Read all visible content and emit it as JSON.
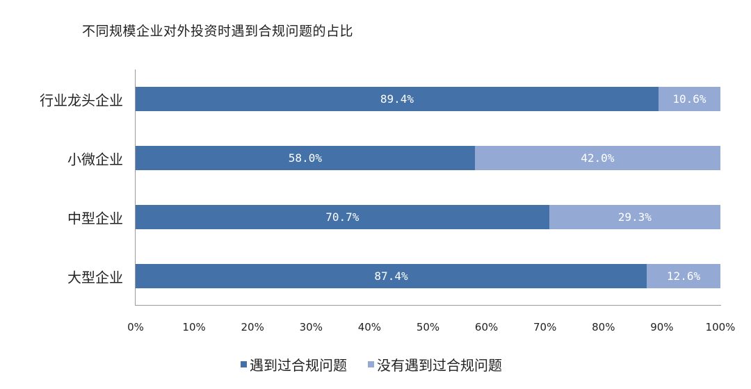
{
  "chart_data": {
    "type": "bar",
    "orientation": "horizontal",
    "stacked": true,
    "title": "不同规模企业对外投资时遇到合规问题的占比",
    "categories": [
      "行业龙头企业",
      "小微企业",
      "中型企业",
      "大型企业"
    ],
    "series": [
      {
        "name": "遇到过合规问题",
        "color": "#4472A8",
        "values": [
          89.4,
          58.0,
          70.7,
          87.4
        ],
        "labels": [
          "89.4%",
          "58.0%",
          "70.7%",
          "87.4%"
        ]
      },
      {
        "name": "没有遇到过合规问题",
        "color": "#94A9D4",
        "values": [
          10.6,
          42.0,
          29.3,
          12.6
        ],
        "labels": [
          "10.6%",
          "42.0%",
          "29.3%",
          "12.6%"
        ]
      }
    ],
    "xlabel": "",
    "ylabel": "",
    "xlim": [
      0,
      100
    ],
    "xticks": [
      "0%",
      "10%",
      "20%",
      "30%",
      "40%",
      "50%",
      "60%",
      "70%",
      "80%",
      "90%",
      "100%"
    ],
    "grid": false,
    "legend_position": "bottom"
  },
  "legend": {
    "items": [
      {
        "label": "遇到过合规问题",
        "color": "#4472A8"
      },
      {
        "label": "没有遇到过合规问题",
        "color": "#94A9D4"
      }
    ]
  }
}
